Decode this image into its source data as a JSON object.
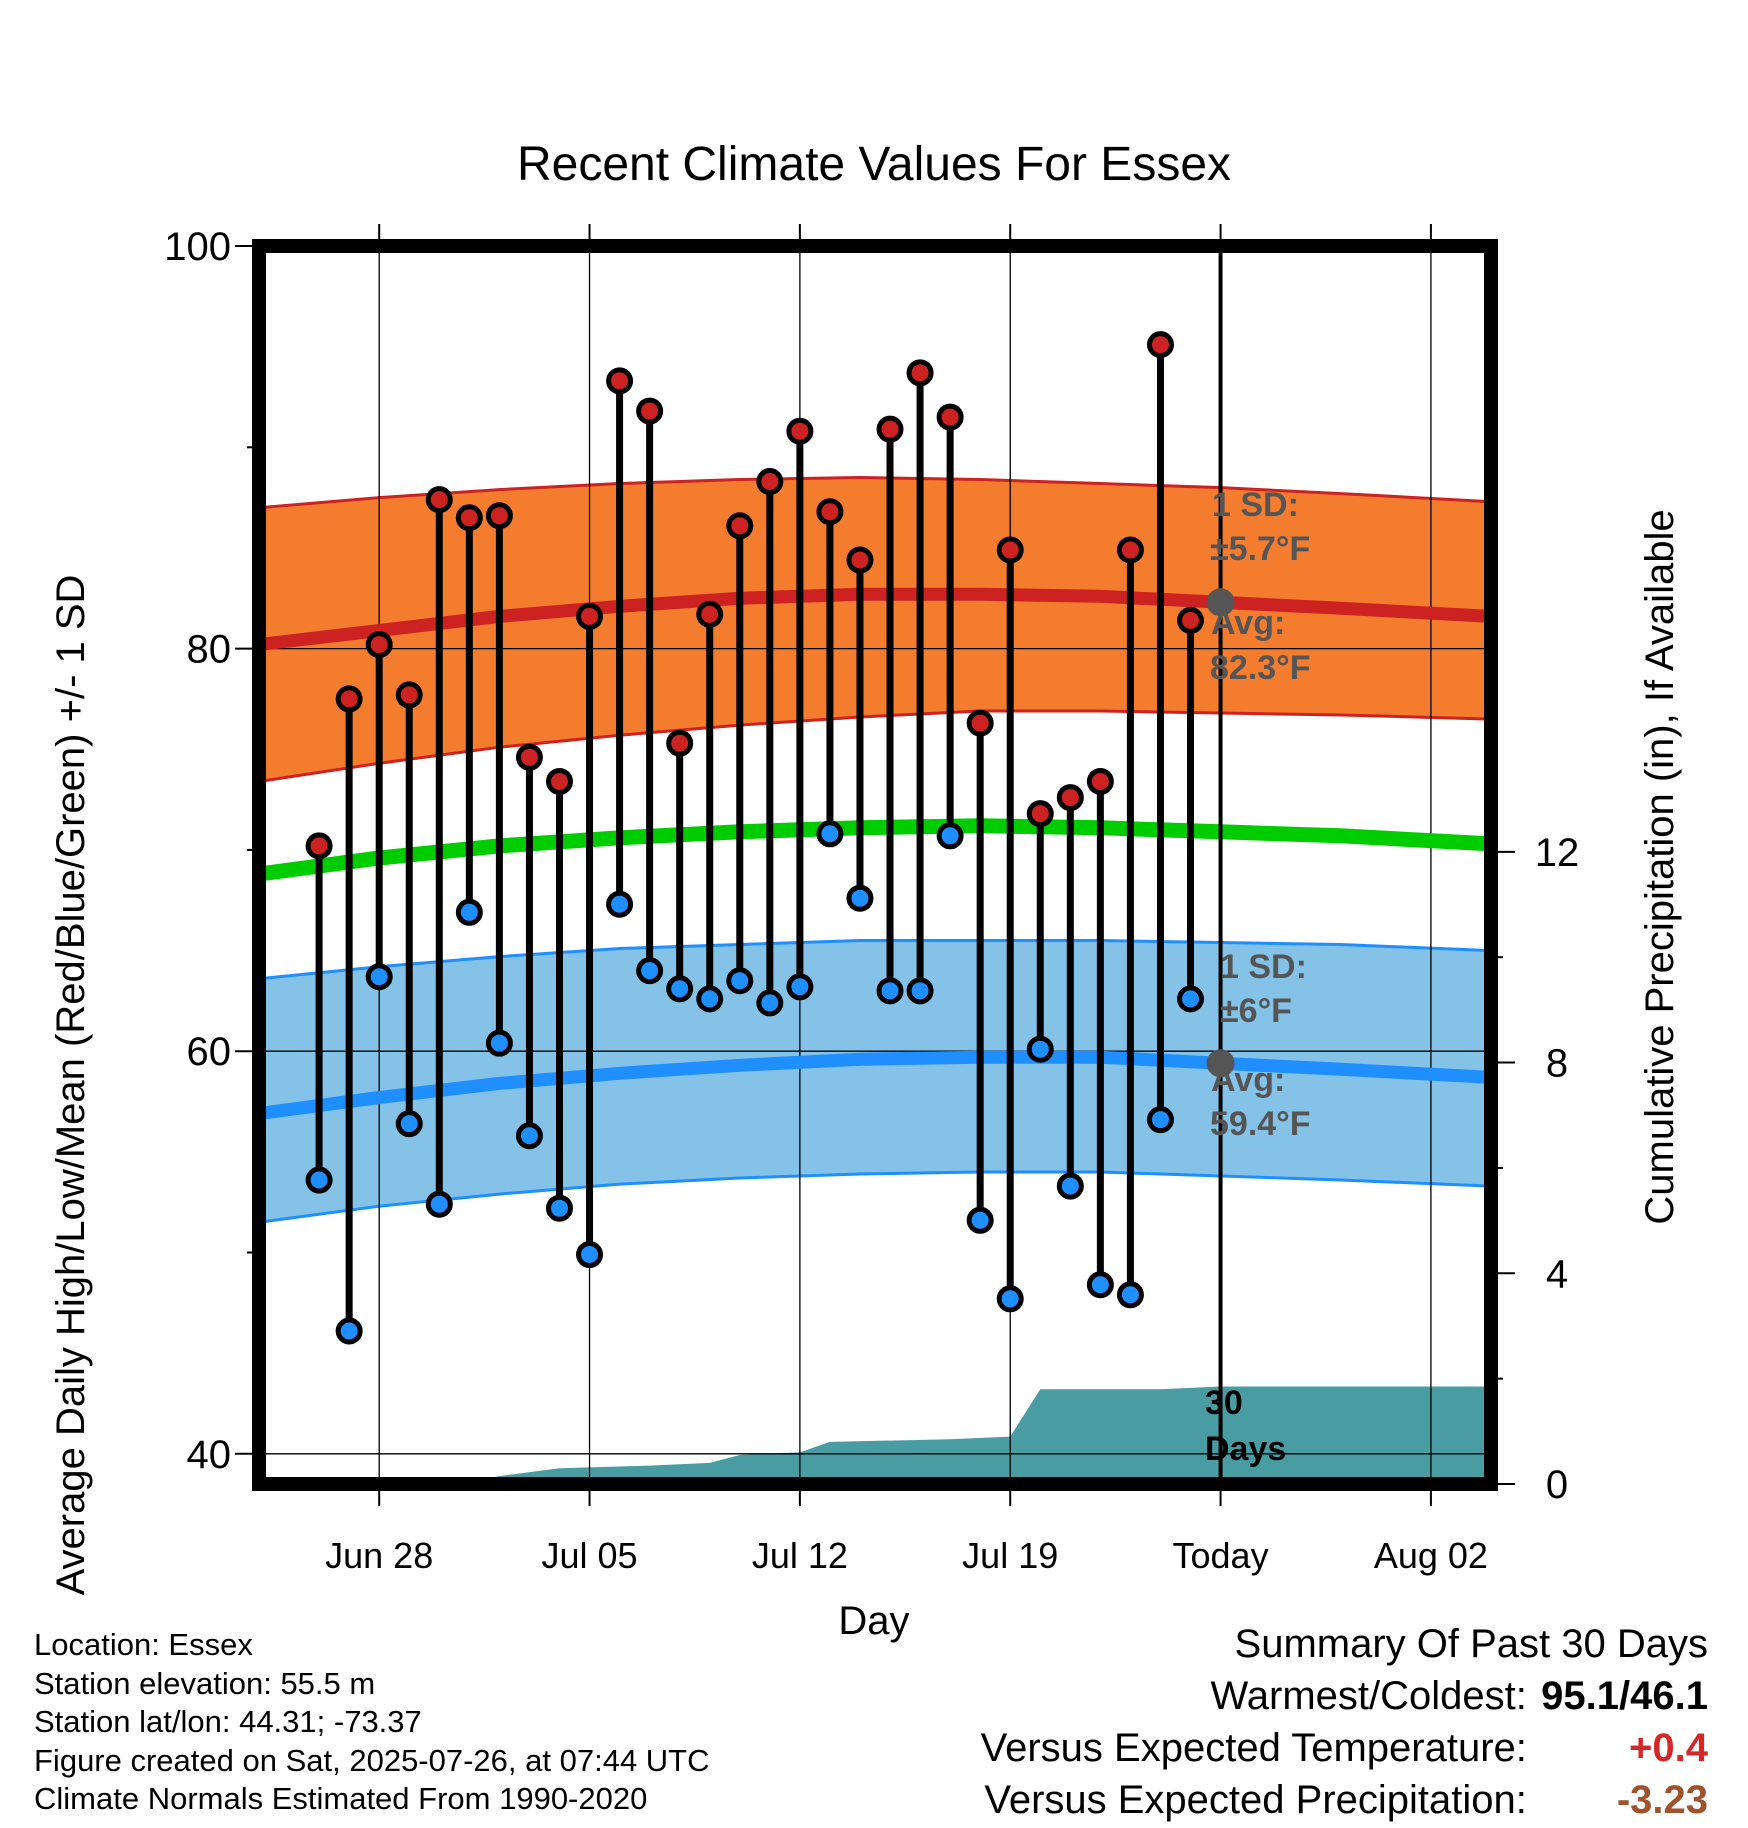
{
  "chart_data": {
    "type": "line",
    "title": "Recent Climate Values For Essex",
    "xlabel": "Day",
    "ylabel": "Average Daily High/Low/Mean (Red/Blue/Green) +/- 1 SD",
    "ylabel_right": "Cumulative Precipitation (in), If Available",
    "ylim": [
      38.5,
      100
    ],
    "y_ticks": [
      "100",
      "80",
      "60",
      "40"
    ],
    "y2lim": [
      0,
      23.5
    ],
    "y2_ticks": [
      "12",
      "8",
      "4",
      "0"
    ],
    "x_ticks": [
      "Jun 28",
      "Jul 05",
      "Jul 12",
      "Jul 19",
      "Today",
      "Aug 02"
    ],
    "xlim": [
      "Jun 24",
      "Aug 04"
    ],
    "grid": true,
    "today": "Jul 26",
    "days": [
      "Jun 26",
      "Jun 27",
      "Jun 28",
      "Jun 29",
      "Jun 30",
      "Jul 01",
      "Jul 02",
      "Jul 03",
      "Jul 04",
      "Jul 05",
      "Jul 06",
      "Jul 07",
      "Jul 08",
      "Jul 09",
      "Jul 10",
      "Jul 11",
      "Jul 12",
      "Jul 13",
      "Jul 14",
      "Jul 15",
      "Jul 16",
      "Jul 17",
      "Jul 18",
      "Jul 19",
      "Jul 20",
      "Jul 21",
      "Jul 22",
      "Jul 23",
      "Jul 24",
      "Jul 25"
    ],
    "series": [
      {
        "name": "Daily High",
        "color": "#cc2222",
        "values": [
          70.2,
          77.5,
          80.2,
          77.7,
          87.4,
          86.5,
          86.6,
          74.6,
          73.4,
          81.6,
          93.3,
          91.8,
          75.3,
          81.7,
          86.1,
          88.3,
          90.8,
          86.8,
          84.4,
          90.9,
          93.7,
          91.5,
          76.3,
          84.9,
          71.8,
          72.6,
          73.4,
          84.9,
          95.1,
          81.4
        ]
      },
      {
        "name": "Daily Low",
        "color": "#1f8fff",
        "values": [
          53.6,
          46.1,
          63.7,
          56.4,
          52.4,
          66.9,
          60.4,
          55.8,
          52.2,
          49.9,
          67.3,
          64.0,
          63.1,
          62.6,
          63.5,
          62.4,
          63.2,
          70.8,
          67.6,
          63.0,
          63.0,
          70.7,
          51.6,
          47.7,
          60.1,
          53.3,
          48.4,
          47.9,
          56.6,
          62.6
        ]
      }
    ],
    "normals": {
      "x": [
        "Jun 24",
        "Jun 28",
        "Jul 02",
        "Jul 06",
        "Jul 10",
        "Jul 14",
        "Jul 18",
        "Jul 22",
        "Jul 26",
        "Jul 30",
        "Aug 04"
      ],
      "high_mean": [
        80.2,
        80.9,
        81.6,
        82.1,
        82.5,
        82.7,
        82.7,
        82.6,
        82.3,
        82.0,
        81.6
      ],
      "high_upper": [
        87.0,
        87.5,
        87.9,
        88.2,
        88.4,
        88.5,
        88.4,
        88.2,
        88.0,
        87.7,
        87.3
      ],
      "high_lower": [
        73.4,
        74.3,
        75.1,
        75.7,
        76.2,
        76.6,
        76.9,
        76.9,
        76.8,
        76.7,
        76.5
      ],
      "low_mean": [
        56.9,
        57.7,
        58.4,
        58.9,
        59.3,
        59.6,
        59.7,
        59.7,
        59.4,
        59.1,
        58.7
      ],
      "low_upper": [
        63.6,
        64.2,
        64.7,
        65.1,
        65.3,
        65.5,
        65.5,
        65.5,
        65.4,
        65.3,
        65.0
      ],
      "low_lower": [
        51.5,
        52.3,
        52.9,
        53.4,
        53.7,
        53.9,
        54.0,
        54.0,
        53.8,
        53.6,
        53.3
      ],
      "mean": [
        68.8,
        69.6,
        70.2,
        70.6,
        70.9,
        71.1,
        71.2,
        71.1,
        70.9,
        70.7,
        70.3
      ]
    },
    "precip_cumulative": {
      "x": [
        "Jun 24",
        "Jun 30",
        "Jul 01",
        "Jul 02",
        "Jul 04",
        "Jul 07",
        "Jul 09",
        "Jul 10",
        "Jul 12",
        "Jul 13",
        "Jul 17",
        "Jul 19",
        "Jul 20",
        "Jul 24",
        "Jul 26",
        "Aug 04"
      ],
      "values": [
        0.0,
        0.0,
        0.05,
        0.15,
        0.3,
        0.35,
        0.4,
        0.55,
        0.6,
        0.8,
        0.85,
        0.9,
        1.8,
        1.8,
        1.85,
        1.85
      ]
    },
    "annotations": {
      "high_sd_label": "1 SD:",
      "high_sd_value": "±5.7°F",
      "high_avg_label": "Avg:",
      "high_avg_value": "82.3°F",
      "low_sd_label": "1 SD:",
      "low_sd_value": "±6°F",
      "low_avg_label": "Avg:",
      "low_avg_value": "59.4°F",
      "days_line1": "30",
      "days_line2": "Days"
    },
    "colors": {
      "high_band": "#f47c2f",
      "high_line": "#cc2222",
      "low_band": "#84c2e8",
      "low_line": "#1f8fff",
      "mean_line": "#00cc00",
      "precip": "#4a9ca3",
      "today_marker": "#555555"
    }
  },
  "footer": {
    "location": "Location: Essex",
    "elevation": "Station elevation: 55.5 m",
    "latlon": "Station lat/lon: 44.31; -73.37",
    "created": "Figure created on Sat, 2025-07-26, at 07:44 UTC",
    "normals": "Climate Normals Estimated From 1990-2020"
  },
  "summary": {
    "title": "Summary Of Past 30 Days",
    "warm_cold_label": "Warmest/Coldest:",
    "warm_cold_value": "95.1/46.1",
    "temp_label": "Versus Expected Temperature:",
    "temp_value": "+0.4",
    "temp_color": "#d62728",
    "precip_label": "Versus Expected Precipitation:",
    "precip_value": "-3.23",
    "precip_color": "#a0522d"
  }
}
